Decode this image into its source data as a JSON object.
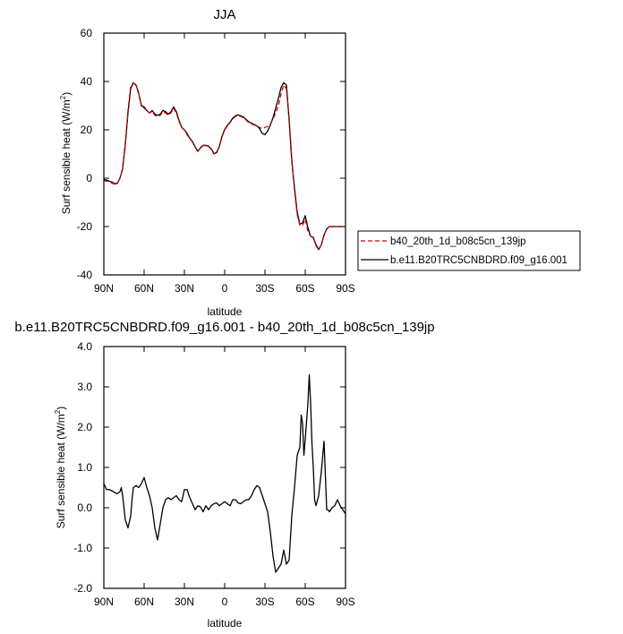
{
  "chart_data": [
    {
      "type": "line",
      "title": "JJA",
      "xlabel": "latitude",
      "ylabel": "Surf sensible heat (W/m²)",
      "ylabel_main": "Surf sensible heat (W/m",
      "ylabel_sup": "2",
      "ylabel_tail": ")",
      "xlim": [
        90,
        -90
      ],
      "ylim": [
        -40,
        60
      ],
      "xticks": [
        90,
        60,
        30,
        0,
        -30,
        -60,
        -90
      ],
      "xtick_labels": [
        "90N",
        "60N",
        "30N",
        "0",
        "30S",
        "60S",
        "90S"
      ],
      "yticks": [
        -40,
        -20,
        0,
        20,
        40,
        60
      ],
      "ytick_labels": [
        "-40",
        "-20",
        "0",
        "20",
        "40",
        "60"
      ],
      "legend_position": "right",
      "series": [
        {
          "name": "b40_20th_1d_b08c5cn_139jp",
          "color": "#cc0000",
          "dash": "dashed",
          "x": [
            90,
            88,
            86,
            84,
            82,
            80,
            78,
            76,
            74,
            72,
            70,
            68,
            66,
            64,
            62,
            60,
            58,
            56,
            54,
            52,
            50,
            48,
            46,
            44,
            42,
            40,
            38,
            36,
            34,
            32,
            30,
            28,
            26,
            24,
            22,
            20,
            18,
            16,
            14,
            12,
            10,
            8,
            6,
            4,
            2,
            0,
            -2,
            -4,
            -6,
            -8,
            -10,
            -12,
            -14,
            -16,
            -18,
            -20,
            -22,
            -24,
            -26,
            -28,
            -30,
            -32,
            -34,
            -36,
            -38,
            -40,
            -42,
            -44,
            -46,
            -48,
            -50,
            -52,
            -54,
            -56,
            -58,
            -60,
            -62,
            -64,
            -66,
            -68,
            -70,
            -72,
            -74,
            -76,
            -78,
            -80,
            -82,
            -84,
            -86,
            -88,
            -90
          ],
          "y": [
            -1,
            -1.2,
            -1.5,
            -2,
            -2.5,
            -2,
            0,
            4,
            14,
            28,
            38,
            39.5,
            38.5,
            35,
            30,
            29,
            28,
            27,
            27.5,
            26,
            25.5,
            26,
            27.5,
            27,
            26,
            27,
            29,
            27,
            23.5,
            21,
            20,
            18,
            16.5,
            15,
            13,
            11,
            12.5,
            13.5,
            13.5,
            13,
            12,
            10,
            10.5,
            13,
            17,
            20,
            21.5,
            23,
            24.5,
            25.5,
            26,
            25.5,
            25,
            24,
            23,
            22.5,
            22,
            21.5,
            21,
            20.5,
            21,
            21.5,
            22.5,
            24.5,
            27,
            30,
            35,
            38.5,
            37,
            25,
            8,
            -5,
            -15,
            -19.5,
            -19.5,
            -17,
            -22,
            -24,
            -24.5,
            -28,
            -29.5,
            -27.5,
            -23.5,
            -21,
            -20,
            -20,
            -20,
            -20,
            -20,
            -20,
            -20
          ]
        },
        {
          "name": "b.e11.B20TRC5CNBDRD.f09_g16.001",
          "color": "#000000",
          "dash": "solid",
          "x": [
            90,
            88,
            86,
            84,
            82,
            80,
            78,
            76,
            74,
            72,
            70,
            68,
            66,
            64,
            62,
            60,
            58,
            56,
            54,
            52,
            50,
            48,
            46,
            44,
            42,
            40,
            38,
            36,
            34,
            32,
            30,
            28,
            26,
            24,
            22,
            20,
            18,
            16,
            14,
            12,
            10,
            8,
            6,
            4,
            2,
            0,
            -2,
            -4,
            -6,
            -8,
            -10,
            -12,
            -14,
            -16,
            -18,
            -20,
            -22,
            -24,
            -26,
            -28,
            -30,
            -32,
            -34,
            -36,
            -38,
            -40,
            -42,
            -44,
            -46,
            -48,
            -50,
            -52,
            -54,
            -56,
            -58,
            -60,
            -62,
            -64,
            -66,
            -68,
            -70,
            -72,
            -74,
            -76,
            -78,
            -80,
            -82,
            -84,
            -86,
            -88,
            -90
          ],
          "y": [
            -0.5,
            -0.8,
            -1.2,
            -1.6,
            -2.2,
            -2.2,
            0,
            4,
            14,
            27,
            37,
            39.5,
            38.5,
            35,
            30,
            29.5,
            28,
            27,
            28,
            26.5,
            26,
            26.5,
            28,
            27.5,
            26.5,
            27.5,
            29.5,
            27.5,
            24,
            21,
            20,
            18.5,
            16.5,
            15.2,
            12.8,
            11.2,
            12.6,
            13.6,
            13.6,
            13.2,
            12.2,
            10.2,
            10.6,
            13.2,
            17.3,
            20.2,
            21.8,
            23.2,
            24.8,
            25.8,
            26.2,
            25.8,
            25.3,
            24.3,
            23.3,
            22.8,
            22.2,
            21.6,
            20.5,
            18.5,
            18,
            19.5,
            22,
            25,
            29,
            33,
            37.5,
            39.5,
            38.5,
            24,
            7,
            -4,
            -14,
            -19,
            -18.5,
            -15.5,
            -20.5,
            -24,
            -24.5,
            -27.5,
            -29.5,
            -27.5,
            -23.5,
            -21,
            -20,
            -20,
            -20,
            -20,
            -20,
            -20,
            -20
          ]
        }
      ]
    },
    {
      "type": "line",
      "title": "b.e11.B20TRC5CNBDRD.f09_g16.001 - b40_20th_1d_b08c5cn_139jp",
      "xlabel": "latitude",
      "ylabel": "Surf sensible heat (W/m²)",
      "ylabel_main": "Surf sensible heat (W/m",
      "ylabel_sup": "2",
      "ylabel_tail": ")",
      "xlim": [
        90,
        -90
      ],
      "ylim": [
        -2.0,
        4.0
      ],
      "xticks": [
        90,
        60,
        30,
        0,
        -30,
        -60,
        -90
      ],
      "xtick_labels": [
        "90N",
        "60N",
        "30N",
        "0",
        "30S",
        "60S",
        "90S"
      ],
      "yticks": [
        -2,
        -1,
        0,
        1,
        2,
        3,
        4
      ],
      "ytick_labels": [
        "-2.0",
        "-1.0",
        "0.0",
        "1.0",
        "2.0",
        "3.0",
        "4.0"
      ],
      "series": [
        {
          "color": "#000000",
          "dash": "solid",
          "x": [
            90,
            88,
            86,
            84,
            82,
            80,
            78,
            77,
            76,
            74,
            72,
            70,
            69,
            68,
            66,
            64,
            62,
            60,
            58,
            56,
            54,
            52,
            50,
            48,
            46,
            44,
            42,
            40,
            38,
            36,
            34,
            32,
            30,
            28,
            26,
            24,
            22,
            20,
            18,
            16,
            14,
            12,
            10,
            8,
            6,
            4,
            2,
            0,
            -2,
            -4,
            -6,
            -8,
            -10,
            -12,
            -14,
            -16,
            -18,
            -20,
            -22,
            -24,
            -26,
            -28,
            -30,
            -32,
            -34,
            -36,
            -38,
            -40,
            -42,
            -44,
            -46,
            -48,
            -50,
            -52,
            -54,
            -56,
            -57,
            -58,
            -59,
            -60,
            -62,
            -63,
            -64,
            -65,
            -66,
            -67,
            -68,
            -70,
            -72,
            -74,
            -75,
            -76,
            -77,
            -78,
            -80,
            -82,
            -84,
            -86,
            -88,
            -90
          ],
          "y": [
            0.6,
            0.45,
            0.45,
            0.42,
            0.38,
            0.35,
            0.4,
            0.5,
            0.3,
            -0.3,
            -0.5,
            -0.2,
            0.2,
            0.5,
            0.55,
            0.5,
            0.6,
            0.75,
            0.5,
            0.3,
            0.0,
            -0.5,
            -0.8,
            -0.4,
            0.0,
            0.2,
            0.25,
            0.2,
            0.25,
            0.3,
            0.2,
            0.15,
            0.45,
            0.45,
            0.25,
            0.1,
            -0.05,
            0.05,
            0.02,
            -0.1,
            0.05,
            -0.05,
            0.05,
            0.1,
            0.12,
            0.05,
            0.1,
            0.15,
            0.1,
            0.05,
            0.2,
            0.2,
            0.12,
            0.1,
            0.15,
            0.2,
            0.2,
            0.3,
            0.45,
            0.55,
            0.5,
            0.3,
            0.1,
            -0.1,
            -0.6,
            -1.2,
            -1.6,
            -1.5,
            -1.4,
            -1.05,
            -1.4,
            -1.3,
            -0.2,
            0.5,
            1.3,
            1.5,
            2.3,
            2.1,
            1.3,
            1.7,
            2.6,
            3.3,
            2.6,
            1.6,
            1.0,
            0.2,
            0.05,
            0.3,
            0.9,
            1.65,
            0.8,
            -0.05,
            -0.05,
            -0.1,
            0.0,
            0.05,
            0.2,
            0.05,
            -0.05,
            -0.15
          ]
        }
      ]
    }
  ]
}
